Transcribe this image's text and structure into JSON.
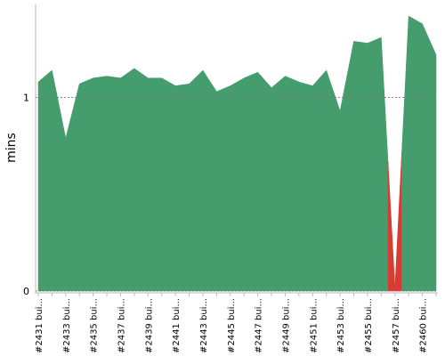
{
  "chart_data": {
    "type": "area",
    "ylabel": "mins",
    "categories": [
      "#2431 bui...",
      null,
      "#2433 bui...",
      null,
      "#2435 bui...",
      null,
      "#2437 bui...",
      null,
      "#2439 bui...",
      null,
      "#2441 bui...",
      null,
      "#2443 bui...",
      null,
      "#2445 bui...",
      null,
      "#2447 bui...",
      null,
      "#2449 bui...",
      null,
      "#2451 bui...",
      null,
      "#2453 bui...",
      null,
      "#2455 bui...",
      null,
      "#2457 bui...",
      null,
      "#2460 bui...",
      null
    ],
    "values": [
      1.08,
      1.14,
      0.79,
      1.07,
      1.1,
      1.11,
      1.1,
      1.15,
      1.1,
      1.1,
      1.06,
      1.07,
      1.14,
      1.03,
      1.06,
      1.1,
      1.13,
      1.05,
      1.11,
      1.08,
      1.06,
      1.14,
      0.93,
      1.29,
      1.28,
      1.31,
      0.02,
      1.42,
      1.38,
      1.22
    ],
    "colors": [
      "#459c6c",
      "#459c6c",
      "#459c6c",
      "#459c6c",
      "#459c6c",
      "#459c6c",
      "#459c6c",
      "#459c6c",
      "#459c6c",
      "#459c6c",
      "#459c6c",
      "#459c6c",
      "#459c6c",
      "#459c6c",
      "#459c6c",
      "#459c6c",
      "#459c6c",
      "#459c6c",
      "#459c6c",
      "#459c6c",
      "#459c6c",
      "#459c6c",
      "#459c6c",
      "#459c6c",
      "#459c6c",
      "#459c6c",
      "#d83a34",
      "#459c6c",
      "#459c6c",
      "#459c6c"
    ],
    "ylim": [
      0,
      1.48
    ],
    "yticks": [
      0,
      1
    ],
    "grid": true
  }
}
